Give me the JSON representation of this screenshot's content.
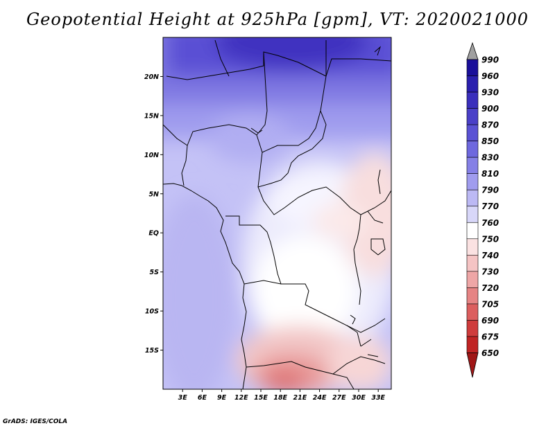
{
  "title": "Geopotential Height at 925hPa [gpm], VT: 2020021000",
  "credit": "GrADS: IGES/COLA",
  "map": {
    "lon_range": [
      0,
      35
    ],
    "lat_range": [
      -20,
      25
    ],
    "lon_ticks": [
      "3E",
      "6E",
      "9E",
      "12E",
      "15E",
      "18E",
      "21E",
      "24E",
      "27E",
      "30E",
      "33E"
    ],
    "lon_tick_values": [
      3,
      6,
      9,
      12,
      15,
      18,
      21,
      24,
      27,
      30,
      33
    ],
    "lat_ticks": [
      "20N",
      "15N",
      "10N",
      "5N",
      "EQ",
      "5S",
      "10S",
      "15S"
    ],
    "lat_tick_values": [
      20,
      15,
      10,
      5,
      0,
      -5,
      -10,
      -15
    ]
  },
  "colorbar": {
    "labels": [
      "990",
      "960",
      "930",
      "900",
      "870",
      "850",
      "830",
      "810",
      "790",
      "770",
      "760",
      "750",
      "740",
      "730",
      "720",
      "705",
      "690",
      "675",
      "650"
    ],
    "colors": [
      "#1a0f9a",
      "#2a1fae",
      "#3a2fbc",
      "#4a40c8",
      "#5a52d4",
      "#6e68de",
      "#8580e6",
      "#a09cee",
      "#bcb9f4",
      "#d8d7f9",
      "#ffffff",
      "#fbe2e2",
      "#f5c4c4",
      "#eea6a6",
      "#e68484",
      "#dc5e5e",
      "#cf3c3c",
      "#c02424",
      "#a01616"
    ],
    "top_arrow_color": "#a0a0a0"
  }
}
